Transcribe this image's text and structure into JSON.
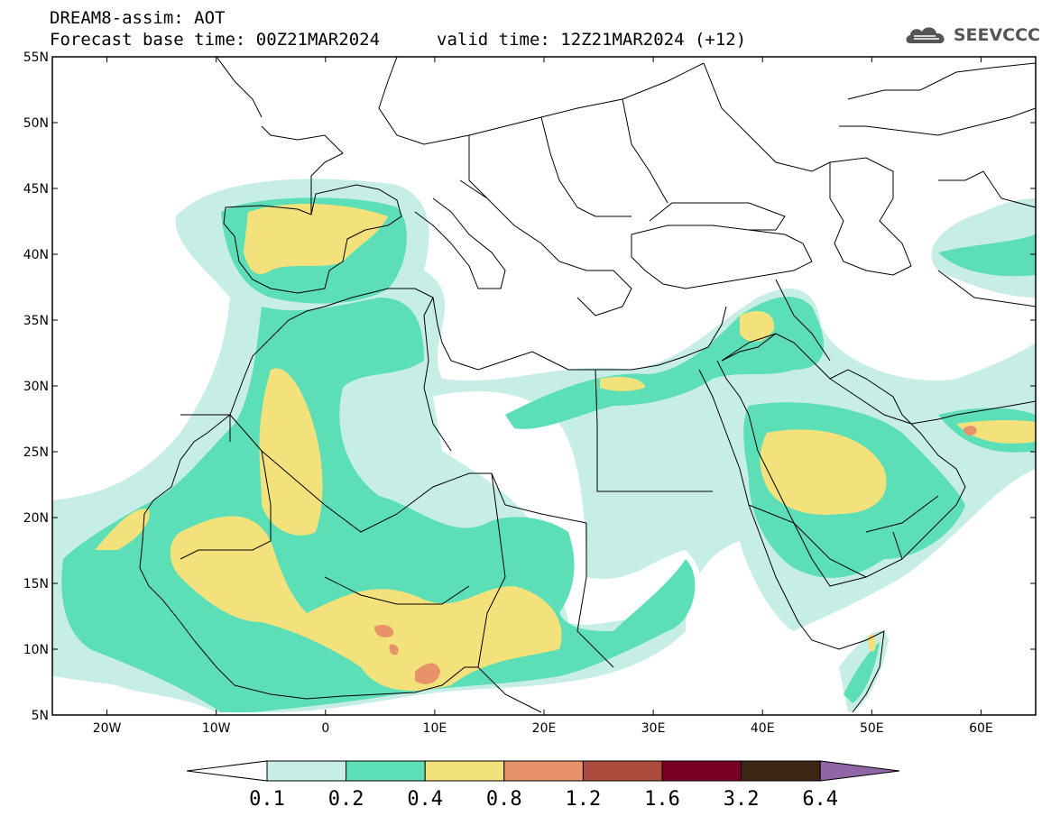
{
  "header": {
    "line1": "DREAM8-assim: AOT",
    "line2": "Forecast base time: 00Z21MAR2024",
    "line3": "valid time: 12Z21MAR2024 (+12)"
  },
  "logo": {
    "text": "SEEVCCC",
    "icon": "cloud-icon"
  },
  "map": {
    "lon_range": [
      -25,
      65
    ],
    "lat_range": [
      5,
      55
    ],
    "lat_ticks": [
      "5N",
      "10N",
      "15N",
      "20N",
      "25N",
      "30N",
      "35N",
      "40N",
      "45N",
      "50N",
      "55N"
    ],
    "lon_ticks": [
      "20W",
      "10W",
      "0",
      "10E",
      "20E",
      "30E",
      "40E",
      "50E",
      "60E"
    ]
  },
  "colorbar": {
    "labels": [
      "0.1",
      "0.2",
      "0.4",
      "0.8",
      "1.2",
      "1.6",
      "3.2",
      "6.4"
    ],
    "colors": {
      "under": "#ffffff",
      "c1": "#c6ede6",
      "c2": "#5cdfb7",
      "c3": "#f3e27c",
      "c4": "#e8926a",
      "c5": "#ab4b3e",
      "c6": "#780024",
      "c7": "#3f2516",
      "over": "#8f67a7"
    }
  },
  "colors": {
    "lightcyan": "#c6ede6",
    "green": "#5cdfb7",
    "yellow": "#f3e27c",
    "salmon": "#e8926a"
  }
}
